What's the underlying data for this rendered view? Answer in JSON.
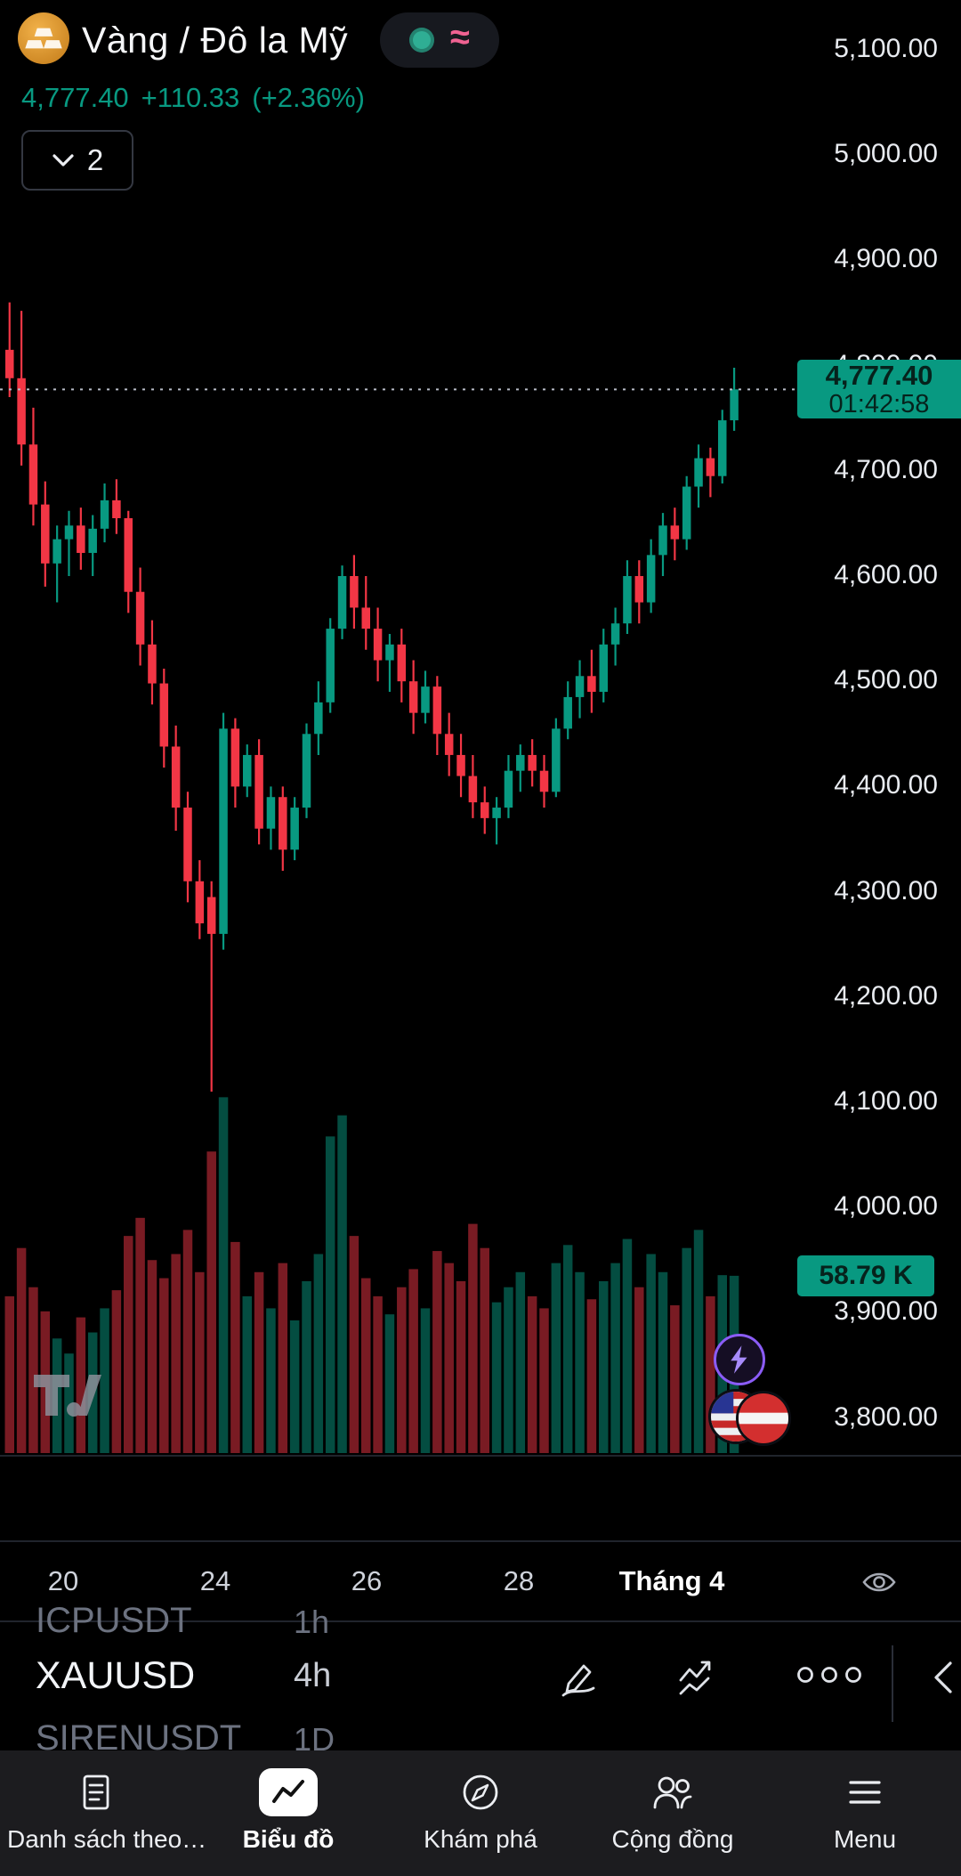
{
  "header": {
    "symbol_title": "Vàng / Đô la Mỹ",
    "symbol_icon": "gold-bars-icon",
    "status_icons": [
      "market-open-dot-icon",
      "waves-icon"
    ],
    "price": "4,777.40",
    "change": "+110.33",
    "change_percent": "(+2.36%)",
    "interval_button": {
      "value": "2",
      "icon": "chevron-down-icon"
    }
  },
  "price_badge": {
    "price": "4,777.40",
    "countdown": "01:42:58"
  },
  "volume_badge": {
    "value": "58.79 K"
  },
  "watermark": {
    "icon": "tradingview-logo"
  },
  "floating_buttons": [
    {
      "icon": "lightning-bolt-icon"
    },
    {
      "icon": "country-flags-icon"
    }
  ],
  "time_axis": {
    "labels": [
      "20",
      "24",
      "26",
      "28",
      "Tháng 4"
    ],
    "icon": "eye-icon"
  },
  "symbol_rows": [
    {
      "symbol": "ICPUSDT",
      "interval": "1h"
    },
    {
      "symbol": "XAUUSD",
      "interval": "4h"
    },
    {
      "symbol": "SIRENUSDT",
      "interval": "1D"
    }
  ],
  "row_toolbar": {
    "icons": [
      "draw-pencil-icon",
      "indicators-icon",
      "more-options-icon",
      "collapse-chevron-icon"
    ]
  },
  "bottom_nav": {
    "items": [
      {
        "label": "Danh sách theo…",
        "icon": "watchlist-icon",
        "active": false
      },
      {
        "label": "Biểu đồ",
        "icon": "chart-icon",
        "active": true
      },
      {
        "label": "Khám phá",
        "icon": "compass-icon",
        "active": false
      },
      {
        "label": "Cộng đồng",
        "icon": "community-icon",
        "active": false
      },
      {
        "label": "Menu",
        "icon": "menu-icon",
        "active": false
      }
    ]
  },
  "colors": {
    "up": "#089981",
    "down": "#f23645",
    "accent_text": "#089981",
    "badge_bg": "#089981",
    "badge_text": "#06221c",
    "nav_bg": "#1c1c1f"
  },
  "chart_data": {
    "type": "candlestick",
    "symbol": "XAUUSD",
    "title": "Vàng / Đô la Mỹ",
    "interval": "4h",
    "last_price": 4777.4,
    "last_change": 110.33,
    "last_change_percent": 2.36,
    "countdown": "01:42:58",
    "last_volume": 58.79,
    "volume_unit": "K",
    "price_axis": [
      5100,
      5000,
      4900,
      4800,
      4700,
      4600,
      4500,
      4400,
      4300,
      4200,
      4100,
      4000,
      3900,
      3800
    ],
    "time_labels": [
      "20",
      "24",
      "26",
      "28",
      "Tháng 4"
    ],
    "up_color": "#089981",
    "down_color": "#f23645",
    "candles": [
      [
        4815,
        4860,
        4770,
        4788
      ],
      [
        4788,
        4852,
        4705,
        4725
      ],
      [
        4725,
        4760,
        4648,
        4668
      ],
      [
        4668,
        4690,
        4590,
        4612
      ],
      [
        4612,
        4648,
        4575,
        4635
      ],
      [
        4635,
        4662,
        4600,
        4648
      ],
      [
        4648,
        4665,
        4606,
        4622
      ],
      [
        4622,
        4658,
        4600,
        4645
      ],
      [
        4645,
        4688,
        4632,
        4672
      ],
      [
        4672,
        4692,
        4640,
        4655
      ],
      [
        4655,
        4662,
        4565,
        4585
      ],
      [
        4585,
        4608,
        4515,
        4535
      ],
      [
        4535,
        4558,
        4478,
        4498
      ],
      [
        4498,
        4512,
        4418,
        4438
      ],
      [
        4438,
        4458,
        4358,
        4380
      ],
      [
        4380,
        4395,
        4290,
        4310
      ],
      [
        4310,
        4330,
        4255,
        4270
      ],
      [
        4295,
        4310,
        4110,
        4260
      ],
      [
        4260,
        4470,
        4245,
        4455
      ],
      [
        4455,
        4465,
        4380,
        4400
      ],
      [
        4400,
        4440,
        4390,
        4430
      ],
      [
        4430,
        4445,
        4345,
        4360
      ],
      [
        4360,
        4400,
        4340,
        4390
      ],
      [
        4390,
        4400,
        4320,
        4340
      ],
      [
        4340,
        4390,
        4330,
        4380
      ],
      [
        4380,
        4460,
        4370,
        4450
      ],
      [
        4450,
        4500,
        4430,
        4480
      ],
      [
        4480,
        4560,
        4470,
        4550
      ],
      [
        4550,
        4610,
        4540,
        4600
      ],
      [
        4600,
        4620,
        4550,
        4570
      ],
      [
        4570,
        4600,
        4530,
        4550
      ],
      [
        4550,
        4570,
        4500,
        4520
      ],
      [
        4520,
        4545,
        4490,
        4535
      ],
      [
        4535,
        4550,
        4480,
        4500
      ],
      [
        4500,
        4520,
        4450,
        4470
      ],
      [
        4470,
        4510,
        4460,
        4495
      ],
      [
        4495,
        4505,
        4430,
        4450
      ],
      [
        4450,
        4470,
        4410,
        4430
      ],
      [
        4430,
        4450,
        4390,
        4410
      ],
      [
        4410,
        4430,
        4370,
        4385
      ],
      [
        4385,
        4400,
        4355,
        4370
      ],
      [
        4370,
        4390,
        4345,
        4380
      ],
      [
        4380,
        4430,
        4370,
        4415
      ],
      [
        4415,
        4440,
        4395,
        4430
      ],
      [
        4430,
        4445,
        4400,
        4415
      ],
      [
        4415,
        4430,
        4380,
        4395
      ],
      [
        4395,
        4465,
        4390,
        4455
      ],
      [
        4455,
        4500,
        4445,
        4485
      ],
      [
        4485,
        4520,
        4465,
        4505
      ],
      [
        4505,
        4530,
        4470,
        4490
      ],
      [
        4490,
        4550,
        4480,
        4535
      ],
      [
        4535,
        4570,
        4515,
        4555
      ],
      [
        4555,
        4615,
        4545,
        4600
      ],
      [
        4600,
        4615,
        4555,
        4575
      ],
      [
        4575,
        4635,
        4565,
        4620
      ],
      [
        4620,
        4660,
        4600,
        4648
      ],
      [
        4648,
        4665,
        4615,
        4635
      ],
      [
        4635,
        4695,
        4625,
        4685
      ],
      [
        4685,
        4725,
        4665,
        4712
      ],
      [
        4712,
        4722,
        4675,
        4695
      ],
      [
        4695,
        4758,
        4688,
        4748
      ],
      [
        4748,
        4798,
        4738,
        4777.4
      ]
    ],
    "volumes": [
      52,
      68,
      55,
      47,
      38,
      33,
      45,
      40,
      48,
      54,
      72,
      78,
      64,
      58,
      66,
      74,
      60,
      100,
      118,
      70,
      52,
      60,
      48,
      63,
      44,
      57,
      66,
      105,
      112,
      72,
      58,
      52,
      46,
      55,
      61,
      48,
      67,
      63,
      57,
      76,
      68,
      50,
      55,
      60,
      52,
      48,
      63,
      69,
      60,
      51,
      57,
      63,
      71,
      55,
      66,
      60,
      49,
      68,
      74,
      52,
      59,
      58.79
    ]
  }
}
